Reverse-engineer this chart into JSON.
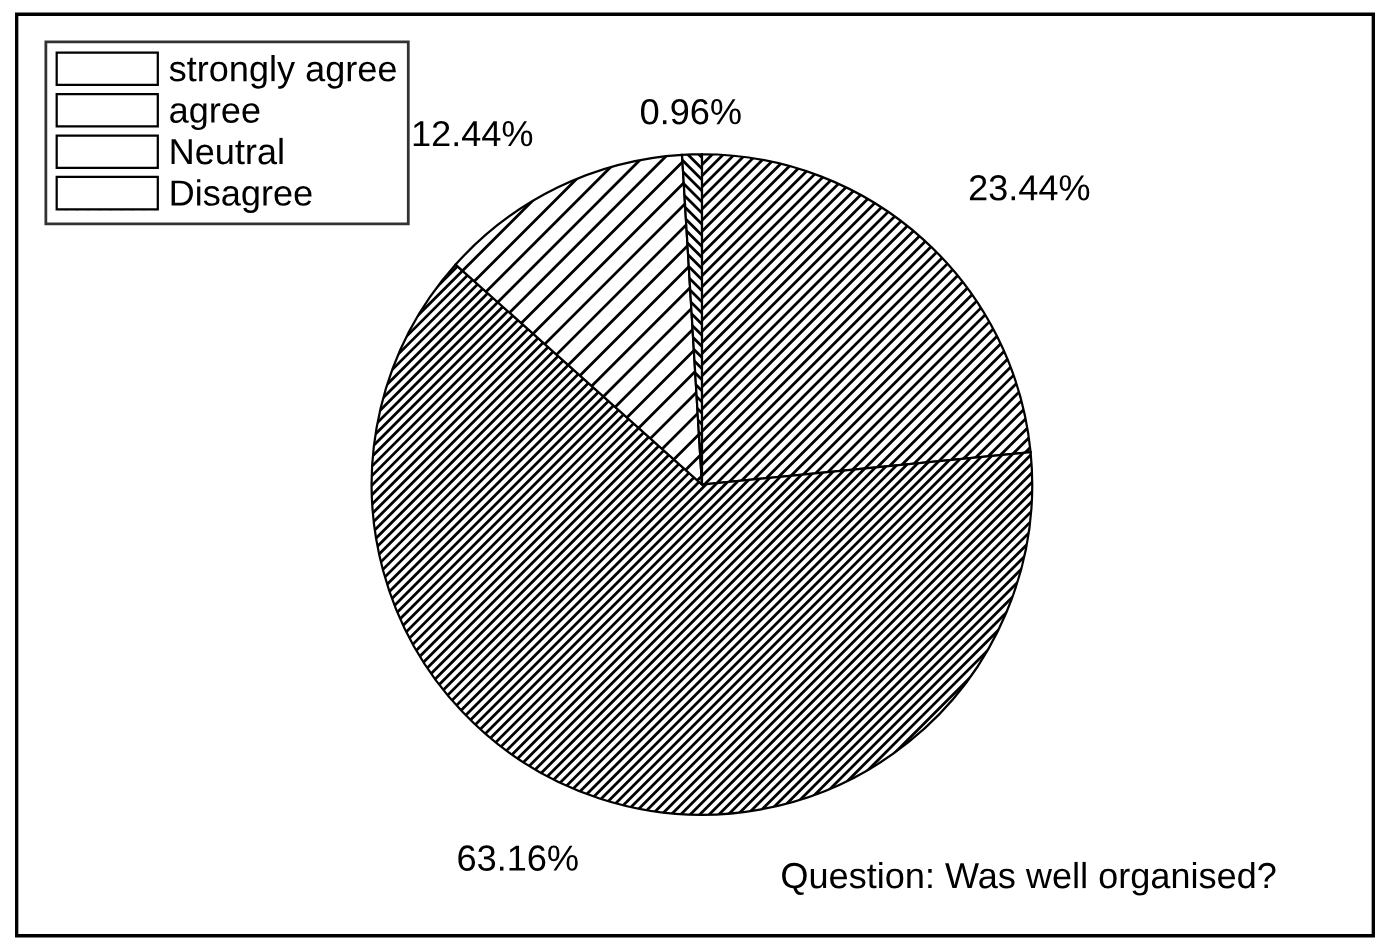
{
  "chart_data": {
    "type": "pie",
    "categories": [
      "strongly agree",
      "agree",
      "Neutral",
      "Disagree"
    ],
    "values": [
      23.44,
      63.16,
      12.44,
      0.96
    ],
    "colors": [
      "#ffffff",
      "#ffffff",
      "#ffffff",
      "#ffffff"
    ],
    "value_labels": [
      "23.44%",
      "63.16%",
      "12.44%",
      "0.96%"
    ],
    "legend": "top left",
    "annotations": [
      "Question: Was well organised?"
    ]
  }
}
